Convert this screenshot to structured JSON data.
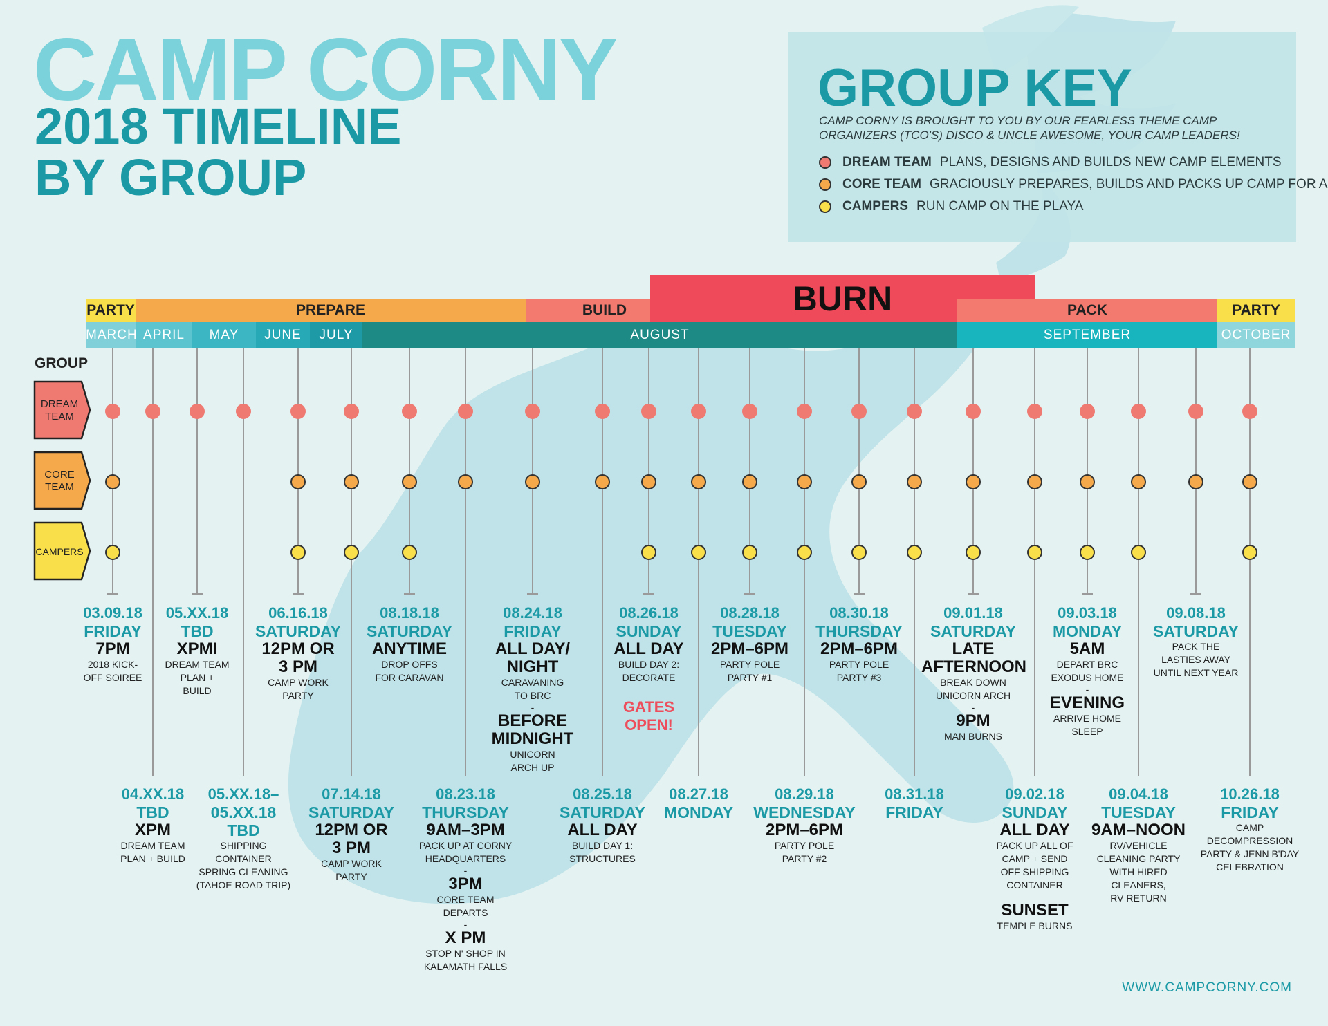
{
  "header": {
    "title": "CAMP CORNY",
    "subtitle_line1": "2018 TIMELINE",
    "subtitle_line2": "BY GROUP"
  },
  "key": {
    "title": "GROUP KEY",
    "intro": "CAMP CORNY IS BROUGHT TO YOU BY OUR FEARLESS THEME CAMP ORGANIZERS (TCO'S) DISCO & UNCLE AWESOME, YOUR CAMP LEADERS!",
    "items": [
      {
        "name": "DREAM TEAM",
        "desc": "PLANS, DESIGNS AND BUILDS NEW CAMP ELEMENTS",
        "color": "#ee7a72"
      },
      {
        "name": "CORE TEAM",
        "desc": "GRACIOUSLY PREPARES, BUILDS AND PACKS UP CAMP FOR ALL OF US",
        "color": "#f6a94a"
      },
      {
        "name": "CAMPERS",
        "desc": "RUN CAMP ON THE PLAYA",
        "color": "#f9e04b"
      }
    ]
  },
  "phases": {
    "party1": "PARTY",
    "prepare": "PREPARE",
    "build": "BUILD",
    "burn": "BURN",
    "pack": "PACK",
    "party2": "PARTY"
  },
  "months": [
    "MARCH",
    "APRIL",
    "MAY",
    "JUNE",
    "JULY",
    "AUGUST",
    "SEPTEMBER",
    "OCTOBER"
  ],
  "groups": {
    "label": "GROUP",
    "dream": [
      "DREAM",
      "TEAM"
    ],
    "core": [
      "CORE",
      "TEAM"
    ],
    "campers": "CAMPERS"
  },
  "colors": {
    "dream": "#ee7a72",
    "core": "#f6a94a",
    "campers": "#f9e04b",
    "teal": "#1b9aa6",
    "red": "#ee4d5b"
  },
  "events_top": [
    {
      "date": "03.09.18",
      "day": "FRIDAY",
      "lines": [
        {
          "k": "t",
          "v": "7PM"
        },
        {
          "k": "s",
          "v": "2018 KICK-"
        },
        {
          "k": "s",
          "v": "OFF SOIREE"
        }
      ]
    },
    {
      "date": "05.XX.18",
      "day": "TBD",
      "lines": [
        {
          "k": "t",
          "v": "XPMI"
        },
        {
          "k": "s",
          "v": "DREAM TEAM"
        },
        {
          "k": "s",
          "v": "PLAN +"
        },
        {
          "k": "s",
          "v": "BUILD"
        }
      ]
    },
    {
      "date": "06.16.18",
      "day": "SATURDAY",
      "lines": [
        {
          "k": "t",
          "v": "12PM OR"
        },
        {
          "k": "t",
          "v": "3 PM"
        },
        {
          "k": "s",
          "v": "CAMP WORK"
        },
        {
          "k": "s",
          "v": "PARTY"
        }
      ]
    },
    {
      "date": "08.18.18",
      "day": "SATURDAY",
      "lines": [
        {
          "k": "t",
          "v": "ANYTIME"
        },
        {
          "k": "s",
          "v": "DROP OFFS"
        },
        {
          "k": "s",
          "v": "FOR CARAVAN"
        }
      ]
    },
    {
      "date": "08.24.18",
      "day": "FRIDAY",
      "lines": [
        {
          "k": "t",
          "v": "ALL DAY/"
        },
        {
          "k": "t",
          "v": "NIGHT"
        },
        {
          "k": "s",
          "v": "CARAVANING"
        },
        {
          "k": "s",
          "v": "TO BRC"
        },
        {
          "k": "dash",
          "v": "-"
        },
        {
          "k": "t",
          "v": "BEFORE"
        },
        {
          "k": "t",
          "v": "MIDNIGHT"
        },
        {
          "k": "s",
          "v": "UNICORN"
        },
        {
          "k": "s",
          "v": "ARCH UP"
        }
      ]
    },
    {
      "date": "08.26.18",
      "day": "SUNDAY",
      "lines": [
        {
          "k": "t",
          "v": "ALL DAY"
        },
        {
          "k": "s",
          "v": "BUILD DAY 2:"
        },
        {
          "k": "s",
          "v": "DECORATE"
        },
        {
          "k": "g",
          "v": "GATES"
        },
        {
          "k": "gg",
          "v": "OPEN!"
        }
      ]
    },
    {
      "date": "08.28.18",
      "day": "TUESDAY",
      "lines": [
        {
          "k": "t",
          "v": "2PM–6PM"
        },
        {
          "k": "s",
          "v": "PARTY POLE"
        },
        {
          "k": "s",
          "v": "PARTY #1"
        }
      ]
    },
    {
      "date": "08.30.18",
      "day": "THURSDAY",
      "lines": [
        {
          "k": "t",
          "v": "2PM–6PM"
        },
        {
          "k": "s",
          "v": "PARTY POLE"
        },
        {
          "k": "s",
          "v": "PARTY #3"
        }
      ]
    },
    {
      "date": "09.01.18",
      "day": "SATURDAY",
      "lines": [
        {
          "k": "t",
          "v": "LATE"
        },
        {
          "k": "t",
          "v": "AFTERNOON"
        },
        {
          "k": "s",
          "v": "BREAK DOWN"
        },
        {
          "k": "s",
          "v": "UNICORN ARCH"
        },
        {
          "k": "dash",
          "v": "-"
        },
        {
          "k": "t",
          "v": "9PM"
        },
        {
          "k": "s",
          "v": "MAN BURNS"
        }
      ]
    },
    {
      "date": "09.03.18",
      "day": "MONDAY",
      "lines": [
        {
          "k": "t",
          "v": "5AM"
        },
        {
          "k": "s",
          "v": "DEPART BRC"
        },
        {
          "k": "s",
          "v": "EXODUS HOME"
        },
        {
          "k": "dash",
          "v": "-"
        },
        {
          "k": "t",
          "v": "EVENING"
        },
        {
          "k": "s",
          "v": "ARRIVE HOME"
        },
        {
          "k": "s",
          "v": "SLEEP"
        }
      ]
    },
    {
      "date": "09.08.18",
      "day": "SATURDAY",
      "lines": [
        {
          "k": "s",
          "v": "PACK THE"
        },
        {
          "k": "s",
          "v": "LASTIES AWAY"
        },
        {
          "k": "s",
          "v": "UNTIL NEXT YEAR"
        }
      ]
    }
  ],
  "events_bottom": [
    {
      "date": "04.XX.18",
      "day": "TBD",
      "lines": [
        {
          "k": "t",
          "v": "XPM"
        },
        {
          "k": "s",
          "v": "DREAM TEAM"
        },
        {
          "k": "s",
          "v": "PLAN + BUILD"
        }
      ]
    },
    {
      "date": "05.XX.18–",
      "day": "05.XX.18",
      "day2": "TBD",
      "lines": [
        {
          "k": "s",
          "v": "SHIPPING"
        },
        {
          "k": "s",
          "v": "CONTAINER"
        },
        {
          "k": "s",
          "v": "SPRING CLEANING"
        },
        {
          "k": "s",
          "v": "(TAHOE ROAD TRIP)"
        }
      ]
    },
    {
      "date": "07.14.18",
      "day": "SATURDAY",
      "lines": [
        {
          "k": "t",
          "v": "12PM OR"
        },
        {
          "k": "t",
          "v": "3 PM"
        },
        {
          "k": "s",
          "v": "CAMP WORK"
        },
        {
          "k": "s",
          "v": "PARTY"
        }
      ]
    },
    {
      "date": "08.23.18",
      "day": "THURSDAY",
      "lines": [
        {
          "k": "t",
          "v": "9AM–3PM"
        },
        {
          "k": "s",
          "v": "PACK UP AT CORNY"
        },
        {
          "k": "s",
          "v": "HEADQUARTERS"
        },
        {
          "k": "dash",
          "v": "-"
        },
        {
          "k": "t",
          "v": "3PM"
        },
        {
          "k": "s",
          "v": "CORE TEAM DEPARTS"
        },
        {
          "k": "dash",
          "v": "-"
        },
        {
          "k": "t",
          "v": "X PM"
        },
        {
          "k": "s",
          "v": "STOP N' SHOP IN"
        },
        {
          "k": "s",
          "v": "KALAMATH FALLS"
        }
      ]
    },
    {
      "date": "08.25.18",
      "day": "SATURDAY",
      "lines": [
        {
          "k": "t",
          "v": "ALL DAY"
        },
        {
          "k": "s",
          "v": "BUILD DAY 1:"
        },
        {
          "k": "s",
          "v": "STRUCTURES"
        }
      ]
    },
    {
      "date": "08.27.18",
      "day": "MONDAY",
      "lines": []
    },
    {
      "date": "08.29.18",
      "day": "WEDNESDAY",
      "lines": [
        {
          "k": "t",
          "v": "2PM–6PM"
        },
        {
          "k": "s",
          "v": "PARTY POLE"
        },
        {
          "k": "s",
          "v": "PARTY #2"
        }
      ]
    },
    {
      "date": "08.31.18",
      "day": "FRIDAY",
      "lines": []
    },
    {
      "date": "09.02.18",
      "day": "SUNDAY",
      "lines": [
        {
          "k": "t",
          "v": "ALL DAY"
        },
        {
          "k": "s",
          "v": "PACK UP ALL OF"
        },
        {
          "k": "s",
          "v": "CAMP + SEND"
        },
        {
          "k": "s",
          "v": "OFF SHIPPING"
        },
        {
          "k": "s",
          "v": "CONTAINER"
        },
        {
          "k": "sp",
          "v": ""
        },
        {
          "k": "t",
          "v": "SUNSET"
        },
        {
          "k": "s",
          "v": "TEMPLE BURNS"
        }
      ]
    },
    {
      "date": "09.04.18",
      "day": "TUESDAY",
      "lines": [
        {
          "k": "t",
          "v": "9AM–NOON"
        },
        {
          "k": "s",
          "v": "RV/VEHICLE"
        },
        {
          "k": "s",
          "v": "CLEANING PARTY"
        },
        {
          "k": "s",
          "v": "WITH HIRED"
        },
        {
          "k": "s",
          "v": "CLEANERS,"
        },
        {
          "k": "s",
          "v": "RV RETURN"
        }
      ]
    },
    {
      "date": "10.26.18",
      "day": "FRIDAY",
      "lines": [
        {
          "k": "s",
          "v": "CAMP DECOMPRESSION"
        },
        {
          "k": "s",
          "v": "PARTY & JENN B'DAY"
        },
        {
          "k": "s",
          "v": "CELEBRATION"
        }
      ]
    }
  ],
  "footer": {
    "url": "WWW.CAMPCORNY.COM"
  }
}
